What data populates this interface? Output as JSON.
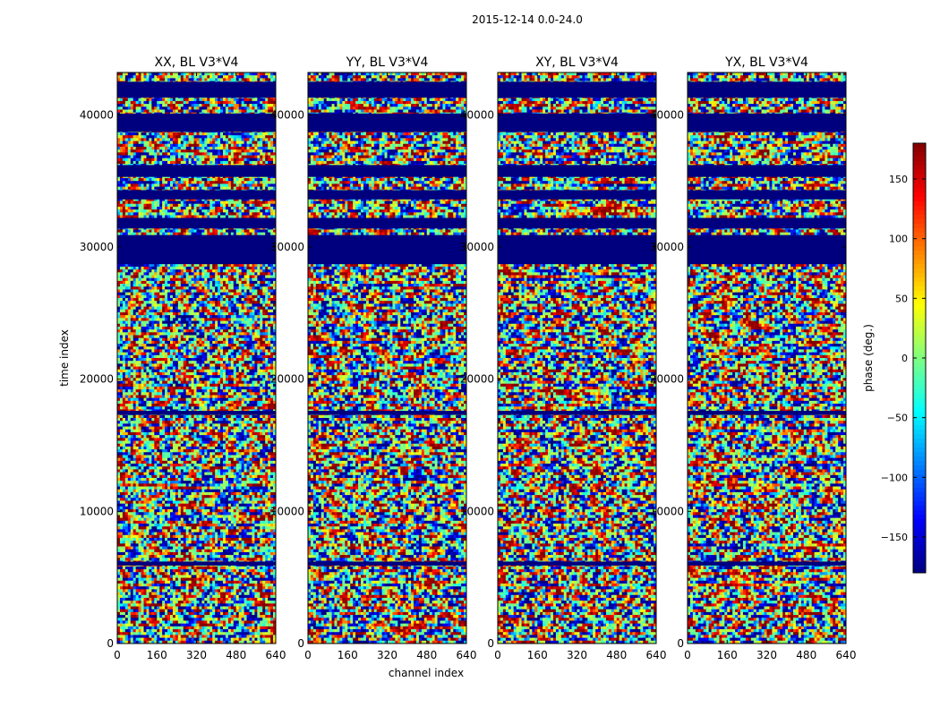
{
  "chart_data": {
    "type": "heatmap",
    "title": "2015-12-14 0.0-24.0",
    "xlabel": "channel index",
    "ylabel": "time index",
    "xlim": [
      0,
      640
    ],
    "ylim": [
      0,
      43200
    ],
    "x_ticks": [
      0,
      160,
      320,
      480,
      640
    ],
    "y_ticks": [
      0,
      10000,
      20000,
      30000,
      40000
    ],
    "panels": [
      {
        "title": "XX, BL V3*V4"
      },
      {
        "title": "YY, BL V3*V4"
      },
      {
        "title": "XY, BL V3*V4"
      },
      {
        "title": "YX, BL V3*V4"
      }
    ],
    "colorbar": {
      "label": "phase (deg.)",
      "range": [
        -180,
        180
      ],
      "ticks": [
        -150,
        -100,
        -50,
        0,
        50,
        100,
        150
      ],
      "tick_labels": [
        "−150",
        "−100",
        "−50",
        "0",
        "50",
        "100",
        "150"
      ],
      "colormap": "jet"
    },
    "flagged_time_ranges": [
      [
        41300,
        42500
      ],
      [
        38700,
        40100
      ],
      [
        35300,
        36200
      ],
      [
        33600,
        34300
      ],
      [
        31400,
        32200
      ],
      [
        28700,
        30900
      ],
      [
        17300,
        17600
      ],
      [
        5900,
        6200
      ]
    ]
  },
  "colors": {
    "flagged": "#00007f",
    "axis": "#000000"
  }
}
